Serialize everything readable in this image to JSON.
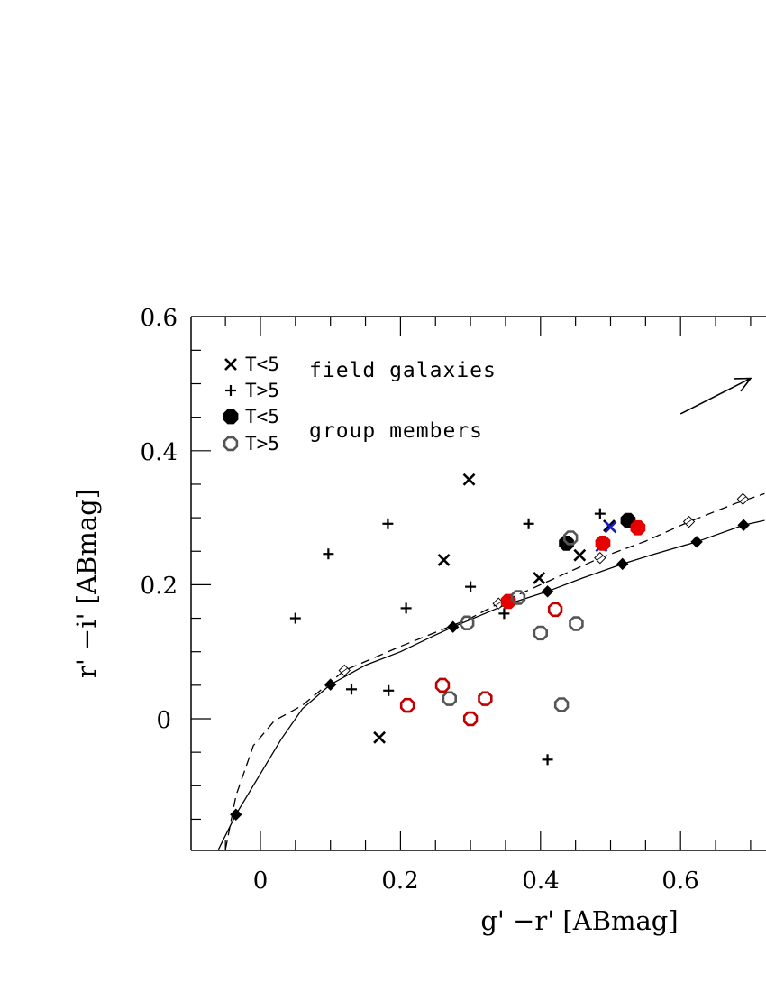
{
  "chart_data": {
    "type": "scatter",
    "xlabel": "g' −r' [ABmag]",
    "ylabel": "r' −i' [ABmag]",
    "xlim": [
      -0.1,
      0.72
    ],
    "ylim": [
      -0.195,
      0.6
    ],
    "x_ticks": [
      "0",
      "0.2",
      "0.4",
      "0.6"
    ],
    "x_tick_values": [
      0,
      0.2,
      0.4,
      0.6
    ],
    "y_ticks": [
      "0",
      "0.2",
      "0.4",
      "0.6"
    ],
    "y_tick_values": [
      0,
      0.2,
      0.4,
      0.6
    ],
    "legend": [
      {
        "marker": "cross",
        "label": "T<5"
      },
      {
        "marker": "plus",
        "label": "T>5"
      },
      {
        "marker": "filled-octagon",
        "label": "T<5"
      },
      {
        "marker": "open-octagon",
        "label": "T>5"
      }
    ],
    "annotations": [
      "field galaxies",
      "group members"
    ],
    "curves": [
      {
        "style": "solid",
        "points": [
          [
            -0.06,
            -0.195
          ],
          [
            -0.035,
            -0.143
          ],
          [
            0.0,
            -0.082
          ],
          [
            0.03,
            -0.03
          ],
          [
            0.06,
            0.015
          ],
          [
            0.1,
            0.051
          ],
          [
            0.15,
            0.08
          ],
          [
            0.2,
            0.1
          ],
          [
            0.25,
            0.125
          ],
          [
            0.275,
            0.137
          ],
          [
            0.35,
            0.17
          ],
          [
            0.41,
            0.19
          ],
          [
            0.46,
            0.21
          ],
          [
            0.517,
            0.231
          ],
          [
            0.56,
            0.245
          ],
          [
            0.623,
            0.264
          ],
          [
            0.69,
            0.289
          ],
          [
            0.72,
            0.296
          ]
        ],
        "markers": [
          [
            -0.035,
            -0.143
          ],
          [
            0.1,
            0.051
          ],
          [
            0.275,
            0.137
          ],
          [
            0.41,
            0.19
          ],
          [
            0.517,
            0.231
          ],
          [
            0.623,
            0.264
          ],
          [
            0.69,
            0.289
          ]
        ]
      },
      {
        "style": "dashed",
        "points": [
          [
            -0.05,
            -0.195
          ],
          [
            -0.035,
            -0.115
          ],
          [
            -0.01,
            -0.04
          ],
          [
            0.02,
            -0.003
          ],
          [
            0.06,
            0.02
          ],
          [
            0.12,
            0.072
          ],
          [
            0.2,
            0.108
          ],
          [
            0.3,
            0.15
          ],
          [
            0.34,
            0.172
          ],
          [
            0.4,
            0.2
          ],
          [
            0.485,
            0.24
          ],
          [
            0.55,
            0.265
          ],
          [
            0.612,
            0.294
          ],
          [
            0.68,
            0.322
          ],
          [
            0.72,
            0.336
          ]
        ],
        "markers": [
          [
            0.12,
            0.072
          ],
          [
            0.34,
            0.172
          ],
          [
            0.485,
            0.24
          ],
          [
            0.612,
            0.294
          ],
          [
            0.689,
            0.328
          ]
        ]
      }
    ],
    "series": [
      {
        "marker": "cross",
        "color": "#000000",
        "points": [
          [
            0.298,
            0.357
          ],
          [
            0.262,
            0.237
          ],
          [
            0.456,
            0.244
          ],
          [
            0.398,
            0.21
          ],
          [
            0.498,
            0.288
          ],
          [
            0.17,
            -0.028
          ]
        ]
      },
      {
        "marker": "cross",
        "color": "#1a1acc",
        "points": [
          [
            0.5,
            0.286
          ],
          [
            0.487,
            0.258
          ]
        ]
      },
      {
        "marker": "plus",
        "color": "#000000",
        "points": [
          [
            0.05,
            0.15
          ],
          [
            0.097,
            0.246
          ],
          [
            0.182,
            0.291
          ],
          [
            0.208,
            0.165
          ],
          [
            0.13,
            0.044
          ],
          [
            0.183,
            0.042
          ],
          [
            0.3,
            0.197
          ],
          [
            0.383,
            0.291
          ],
          [
            0.485,
            0.306
          ],
          [
            0.348,
            0.157
          ],
          [
            0.41,
            -0.061
          ]
        ]
      },
      {
        "marker": "filled-octagon",
        "color": "#000000",
        "points": [
          [
            0.437,
            0.262
          ],
          [
            0.525,
            0.296
          ]
        ]
      },
      {
        "marker": "filled-octagon",
        "color": "#e60000",
        "points": [
          [
            0.354,
            0.175
          ],
          [
            0.489,
            0.262
          ],
          [
            0.539,
            0.285
          ]
        ]
      },
      {
        "marker": "open-octagon",
        "color": "#555555",
        "points": [
          [
            0.443,
            0.27
          ],
          [
            0.295,
            0.143
          ],
          [
            0.368,
            0.181
          ],
          [
            0.451,
            0.142
          ],
          [
            0.4,
            0.128
          ],
          [
            0.27,
            0.03
          ],
          [
            0.43,
            0.021
          ]
        ]
      },
      {
        "marker": "open-octagon",
        "color": "#c00000",
        "points": [
          [
            0.421,
            0.163
          ],
          [
            0.26,
            0.05
          ],
          [
            0.21,
            0.02
          ],
          [
            0.3,
            0.0
          ],
          [
            0.321,
            0.03
          ]
        ]
      }
    ],
    "arrow": {
      "from": [
        0.6,
        0.455
      ],
      "to": [
        0.7,
        0.508
      ]
    }
  }
}
